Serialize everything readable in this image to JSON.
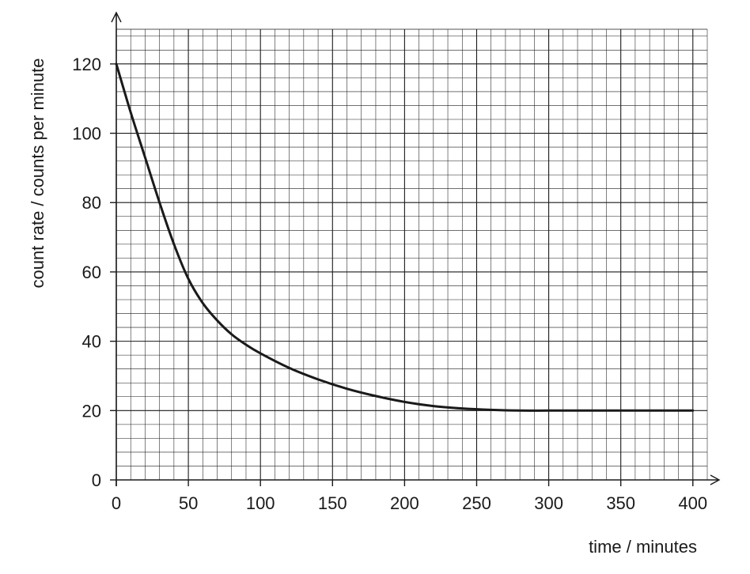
{
  "chart_data": {
    "type": "line",
    "title": "",
    "xlabel": "time / minutes",
    "ylabel": "count rate / counts per minute",
    "xlim": [
      0,
      410
    ],
    "ylim": [
      0,
      130
    ],
    "x_ticks": [
      0,
      50,
      100,
      150,
      200,
      250,
      300,
      350,
      400
    ],
    "y_ticks": [
      0,
      20,
      40,
      60,
      80,
      100,
      120
    ],
    "x_tick_labels": [
      "0",
      "50",
      "100",
      "150",
      "200",
      "250",
      "300",
      "350",
      "400"
    ],
    "y_tick_labels": [
      "0",
      "20",
      "40",
      "60",
      "80",
      "100",
      "120"
    ],
    "grid": true,
    "grid_minor_step_x": 10,
    "grid_minor_step_y": 4,
    "series": [
      {
        "x": [
          0,
          10,
          20,
          30,
          40,
          50,
          60,
          70,
          80,
          90,
          100,
          120,
          140,
          160,
          180,
          200,
          220,
          240,
          260,
          280,
          300,
          320,
          340,
          360,
          380,
          400
        ],
        "y": [
          120,
          106,
          93,
          80,
          68,
          58,
          51,
          46,
          42,
          39,
          36.5,
          32.3,
          29,
          26.3,
          24.2,
          22.5,
          21.3,
          20.6,
          20.2,
          20,
          20,
          20,
          20,
          20,
          20,
          20
        ]
      }
    ],
    "colors": {
      "curve": "#1a1a1a",
      "grid": "#1a1a1a",
      "axis": "#1a1a1a"
    }
  }
}
